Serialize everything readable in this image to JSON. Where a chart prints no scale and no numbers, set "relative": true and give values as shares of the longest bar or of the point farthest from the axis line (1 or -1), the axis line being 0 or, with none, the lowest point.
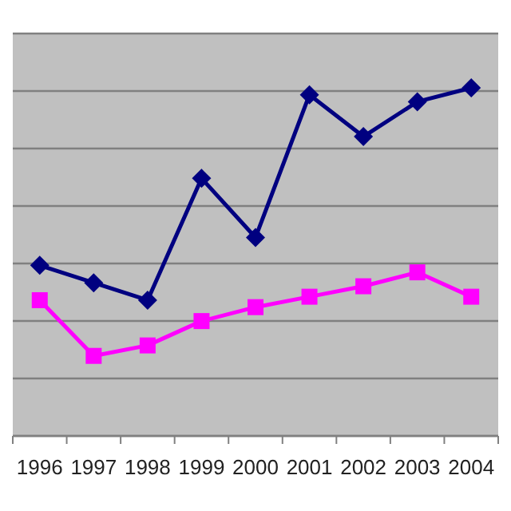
{
  "chart_data": {
    "type": "line",
    "relative": true,
    "grid": "y",
    "categories": [
      "1996",
      "1997",
      "1998",
      "1999",
      "2000",
      "2001",
      "2002",
      "2003",
      "2004"
    ],
    "series": [
      {
        "color": "#000080",
        "marker": "diamond",
        "values": [
          0.49,
          0.44,
          0.39,
          0.74,
          0.57,
          0.98,
          0.86,
          0.96,
          1
        ]
      },
      {
        "color": "#ff00ff",
        "marker": "square",
        "values": [
          0.39,
          0.23,
          0.26,
          0.33,
          0.37,
          0.4,
          0.43,
          0.47,
          0.4
        ]
      }
    ]
  }
}
